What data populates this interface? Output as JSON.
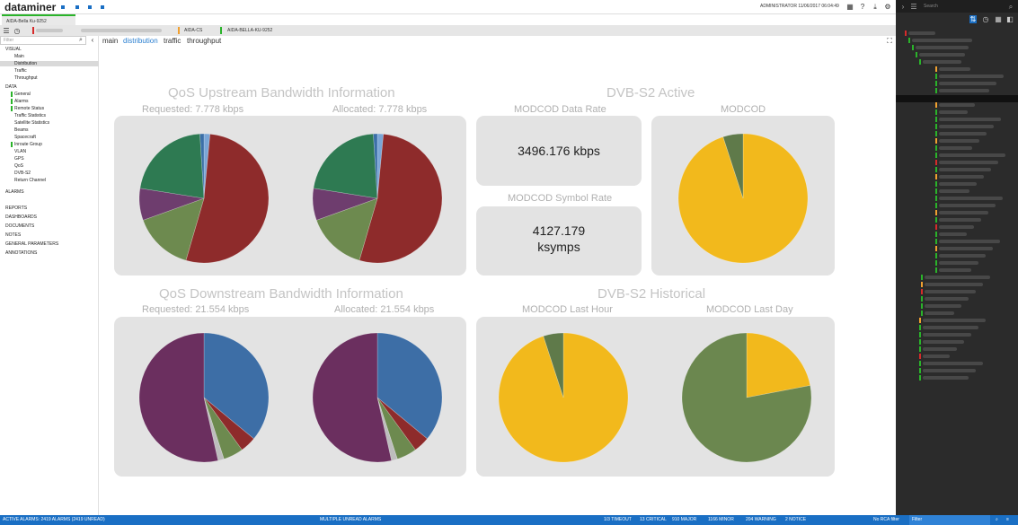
{
  "app": {
    "title": "dataminer",
    "user_time": "ADMINISTRATOR 11/06/2017 06:04:49"
  },
  "tabs": [
    {
      "label": "AIDA-Bella Ku-9252"
    }
  ],
  "breadcrumbs": [
    "AIDA-CS",
    "AIDA-BELLA-KU-9252"
  ],
  "left": {
    "filter_placeholder": "Filter",
    "tree": [
      {
        "label": "VISUAL",
        "level": 0
      },
      {
        "label": "Main",
        "level": 1
      },
      {
        "label": "Distribution",
        "level": 1,
        "selected": true
      },
      {
        "label": "Traffic",
        "level": 1
      },
      {
        "label": "Throughput",
        "level": 1
      },
      {
        "label": "DATA",
        "level": 0
      },
      {
        "label": "General",
        "level": 1
      },
      {
        "label": "Alarms",
        "level": 1
      },
      {
        "label": "Remote Status",
        "level": 1
      },
      {
        "label": "Traffic Statistics",
        "level": 1
      },
      {
        "label": "Satellite Statistics",
        "level": 1
      },
      {
        "label": "Beams",
        "level": 1
      },
      {
        "label": "Spacecraft",
        "level": 1
      },
      {
        "label": "Inroute Group",
        "level": 1
      },
      {
        "label": "VLAN",
        "level": 1
      },
      {
        "label": "GPS",
        "level": 1
      },
      {
        "label": "QoS",
        "level": 1
      },
      {
        "label": "DVB-S2",
        "level": 1
      },
      {
        "label": "Return Channel",
        "level": 1
      },
      {
        "label": "ALARMS",
        "level": 0
      },
      {
        "label": "REPORTS",
        "level": 0
      },
      {
        "label": "DASHBOARDS",
        "level": 0
      },
      {
        "label": "DOCUMENTS",
        "level": 0
      },
      {
        "label": "NOTES",
        "level": 0
      },
      {
        "label": "GENERAL PARAMETERS",
        "level": 0
      },
      {
        "label": "ANNOTATIONS",
        "level": 0
      }
    ]
  },
  "page_tabs": [
    "main",
    "distribution",
    "traffic",
    "throughput"
  ],
  "upstream": {
    "title": "QoS Upstream Bandwidth Information",
    "requested": "Requested: 7.778 kbps",
    "allocated": "Allocated:   7.778 kbps"
  },
  "downstream": {
    "title": "QoS Downstream Bandwidth Information",
    "requested": "Requested: 21.554 kbps",
    "allocated": "Allocated:  21.554 kbps"
  },
  "dvb_active": {
    "title": "DVB-S2 Active",
    "data_rate_label": "MODCOD Data Rate",
    "data_rate_value": "3496.176 kbps",
    "symbol_rate_label": "MODCOD Symbol Rate",
    "symbol_rate_value_1": "4127.179",
    "symbol_rate_value_2": "ksymps",
    "modcod_label": "MODCOD"
  },
  "dvb_hist": {
    "title": "DVB-S2 Historical",
    "last_hour_label": "MODCOD Last Hour",
    "last_day_label": "MODCOD Last Day"
  },
  "right": {
    "search_placeholder": "Search"
  },
  "status": {
    "active_alarms": "ACTIVE ALARMS: 2419 ALARMS (2419 UNREAD)",
    "multiple": "MULTIPLE UNREAD ALARMS",
    "timeout": "1/3 TIMEOUT",
    "critical": "13 CRITICAL",
    "major": "910 MAJOR",
    "minor": "1166 MINOR",
    "warning": "204 WARNING",
    "notice": "2 NOTICE",
    "filter": "No RCA filter",
    "filter_box": "Filter"
  },
  "colors": {
    "accent": "#1a6fc4",
    "panel": "#e3e3e3",
    "title_gray": "#c4c4c4"
  },
  "chart_data": [
    {
      "type": "pie",
      "name": "upstream-requested",
      "slices": [
        {
          "value": 1.5,
          "color": "#7aa6d6"
        },
        {
          "value": 53,
          "color": "#8e2b2b"
        },
        {
          "value": 15,
          "color": "#6d8a4f"
        },
        {
          "value": 8,
          "color": "#6e3d6e"
        },
        {
          "value": 21.5,
          "color": "#2e7a52"
        },
        {
          "value": 1,
          "color": "#3b6fa8"
        }
      ]
    },
    {
      "type": "pie",
      "name": "upstream-allocated",
      "slices": [
        {
          "value": 1.5,
          "color": "#7aa6d6"
        },
        {
          "value": 53,
          "color": "#8e2b2b"
        },
        {
          "value": 15,
          "color": "#6d8a4f"
        },
        {
          "value": 8,
          "color": "#6e3d6e"
        },
        {
          "value": 21.5,
          "color": "#2e7a52"
        },
        {
          "value": 1,
          "color": "#3b6fa8"
        }
      ]
    },
    {
      "type": "pie",
      "name": "downstream-requested",
      "slices": [
        {
          "value": 36,
          "color": "#3d6ea6"
        },
        {
          "value": 4,
          "color": "#8e2b2b"
        },
        {
          "value": 5,
          "color": "#6d8a4f"
        },
        {
          "value": 1.5,
          "color": "#bdbdbd"
        },
        {
          "value": 53.5,
          "color": "#6b2f5f"
        }
      ]
    },
    {
      "type": "pie",
      "name": "downstream-allocated",
      "slices": [
        {
          "value": 36,
          "color": "#3d6ea6"
        },
        {
          "value": 4,
          "color": "#8e2b2b"
        },
        {
          "value": 5,
          "color": "#6d8a4f"
        },
        {
          "value": 1.5,
          "color": "#bdbdbd"
        },
        {
          "value": 53.5,
          "color": "#6b2f5f"
        }
      ]
    },
    {
      "type": "pie",
      "name": "modcod-active",
      "slices": [
        {
          "value": 95,
          "color": "#f2b91c"
        },
        {
          "value": 5,
          "color": "#5f7a4a"
        }
      ]
    },
    {
      "type": "pie",
      "name": "modcod-last-hour",
      "slices": [
        {
          "value": 95,
          "color": "#f2b91c"
        },
        {
          "value": 5,
          "color": "#5f7a4a"
        }
      ]
    },
    {
      "type": "pie",
      "name": "modcod-last-day",
      "slices": [
        {
          "value": 22,
          "color": "#f2b91c"
        },
        {
          "value": 78,
          "color": "#6b874f"
        }
      ]
    }
  ]
}
